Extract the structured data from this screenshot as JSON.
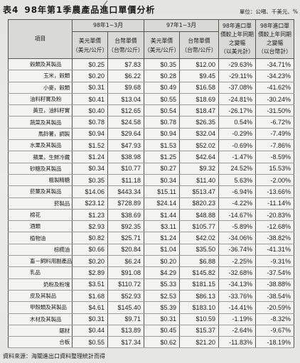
{
  "table_label": "表4",
  "title": "98年第1季農產品進口單價分析",
  "unit": "單位：公噸、千美元、%",
  "header": {
    "item": "項目",
    "period_98": "98年1~3月",
    "period_97": "97年1~3月",
    "usd_price": [
      "美元單價",
      "（美元/公斤）"
    ],
    "twd_price": [
      "台幣單價",
      "（台幣/公斤）"
    ],
    "change_usd": [
      "98年進口單",
      "價較上年同期",
      "之變幅",
      "（以美元計）"
    ],
    "change_twd": [
      "98年進口單",
      "價較上年同期",
      "之變幅",
      "（以台幣計）"
    ]
  },
  "groups": [
    {
      "item": "穀類及其製品",
      "values": [
        "$0.25",
        "$7.83",
        "$0.35",
        "$12.00",
        "-29.63%",
        "-34.71%"
      ],
      "children": [
        {
          "item": "玉米，穀類",
          "values": [
            "$0.20",
            "$6.22",
            "$0.28",
            "$9.45",
            "-29.11%",
            "-34.23%"
          ]
        },
        {
          "item": "小麥，穀類",
          "values": [
            "$0.31",
            "$9.68",
            "$0.49",
            "$16.58",
            "-37.08%",
            "-41.62%"
          ]
        }
      ]
    },
    {
      "item": "油料籽實及粉",
      "values": [
        "$0.41",
        "$13.04",
        "$0.55",
        "$18.69",
        "-24.81%",
        "-30.24%"
      ],
      "children": [
        {
          "item": "黃豆，油料籽實",
          "values": [
            "$0.40",
            "$12.65",
            "$0.54",
            "$18.47",
            "-26.17%",
            "-31.50%"
          ]
        }
      ]
    },
    {
      "item": "蔬菜及其製品",
      "values": [
        "$0.78",
        "$24.58",
        "$0.78",
        "$26.35",
        "0.54%",
        "-6.72%"
      ],
      "children": [
        {
          "item": "馬鈴薯，調製",
          "values": [
            "$0.94",
            "$29.64",
            "$0.94",
            "$32.04",
            "-0.29%",
            "-7.49%"
          ]
        }
      ]
    },
    {
      "item": "水果及其製品",
      "values": [
        "$1.52",
        "$47.93",
        "$1.53",
        "$52.02",
        "-0.69%",
        "-7.86%"
      ],
      "children": [
        {
          "item": "蘋果，生鮮冷藏",
          "values": [
            "$1.24",
            "$38.98",
            "$1.25",
            "$42.64",
            "-1.47%",
            "-8.59%"
          ]
        }
      ]
    },
    {
      "item": "砂糖及其製品",
      "values": [
        "$0.34",
        "$10.77",
        "$0.27",
        "$9.32",
        "24.52%",
        "15.53%"
      ],
      "children": [
        {
          "item": "粗製精糖",
          "values": [
            "$0.35",
            "$11.18",
            "$0.34",
            "$11.40",
            "5.63%",
            "-2.00%"
          ]
        }
      ]
    },
    {
      "item": "菸葉及其製品",
      "values": [
        "$14.06",
        "$443.34",
        "$15.11",
        "$513.47",
        "-6.94%",
        "-13.66%"
      ],
      "children": [
        {
          "item": "菸製品",
          "values": [
            "$23.12",
            "$728.89",
            "$24.14",
            "$820.23",
            "-4.22%",
            "-11.14%"
          ]
        }
      ]
    },
    {
      "item": "棉花",
      "values": [
        "$1.23",
        "$38.69",
        "$1.44",
        "$48.88",
        "-14.67%",
        "-20.83%"
      ]
    },
    {
      "item": "酒類",
      "values": [
        "$2.93",
        "$92.35",
        "$3.11",
        "$105.77",
        "-5.89%",
        "-12.68%"
      ]
    },
    {
      "item": "植物油",
      "values": [
        "$0.82",
        "$25.71",
        "$1.24",
        "$42.02",
        "-34.06%",
        "-38.82%"
      ],
      "children": [
        {
          "item": "棕櫚油",
          "values": [
            "$0.66",
            "$20.84",
            "$1.04",
            "$35.50",
            "-36.74%",
            "-41.31%"
          ]
        }
      ]
    },
    {
      "item": "畜－飼料用副產品",
      "values": [
        "$0.20",
        "$6.24",
        "$0.20",
        "$6.88",
        "-2.25%",
        "-9.31%"
      ]
    },
    {
      "item": "乳品",
      "values": [
        "$2.89",
        "$91.08",
        "$4.29",
        "$145.82",
        "-32.68%",
        "-37.54%"
      ],
      "children": [
        {
          "item": "奶粉及粉塊",
          "values": [
            "$3.51",
            "$110.72",
            "$5.33",
            "$181.15",
            "-34.13%",
            "-38.88%"
          ]
        }
      ]
    },
    {
      "item": "皮及其製品",
      "values": [
        "$1.68",
        "$52.93",
        "$2.53",
        "$86.13",
        "-33.76%",
        "-38.54%"
      ]
    },
    {
      "item": "甲殼類及其製品",
      "values": [
        "$4.61",
        "$145.40",
        "$5.39",
        "$183.10",
        "-14.41%",
        "-20.59%"
      ]
    },
    {
      "item": "木材及其製品",
      "values": [
        "$0.31",
        "$9.71",
        "$0.31",
        "$10.59",
        "-1.19%",
        "-8.32%"
      ],
      "children": [
        {
          "item": "鋸材",
          "values": [
            "$0.44",
            "$13.89",
            "$0.45",
            "$15.37",
            "-2.64%",
            "-9.67%"
          ]
        },
        {
          "item": "合板",
          "values": [
            "$0.55",
            "$17.34",
            "$0.62",
            "$21.20",
            "-11.83%",
            "-18.19%"
          ]
        }
      ]
    }
  ],
  "source": "資料來源：海關進出口資料整理統計而得"
}
